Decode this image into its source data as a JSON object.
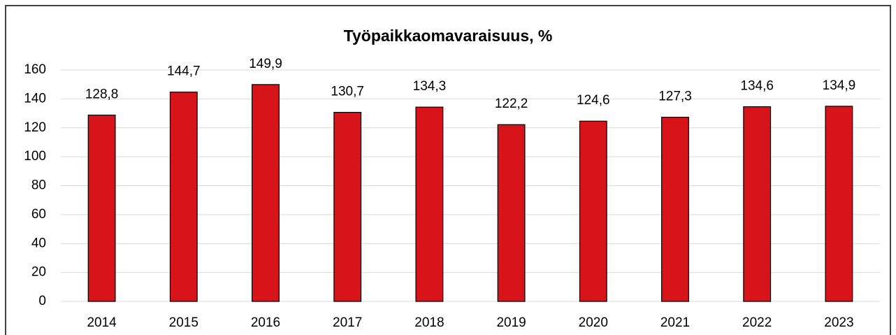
{
  "chart_data": {
    "type": "bar",
    "title": "Työpaikkaomavaraisuus, %",
    "categories": [
      "2014",
      "2015",
      "2016",
      "2017",
      "2018",
      "2019",
      "2020",
      "2021",
      "2022",
      "2023"
    ],
    "values": [
      128.8,
      144.7,
      149.9,
      130.7,
      134.3,
      122.2,
      124.6,
      127.3,
      134.6,
      134.9
    ],
    "value_labels": [
      "128,8",
      "144,7",
      "149,9",
      "130,7",
      "134,3",
      "122,2",
      "124,6",
      "127,3",
      "134,6",
      "134,9"
    ],
    "color": "#d7141a",
    "ylim": [
      0,
      160
    ],
    "yticks": [
      0,
      20,
      40,
      60,
      80,
      100,
      120,
      140,
      160
    ],
    "grid": true
  }
}
